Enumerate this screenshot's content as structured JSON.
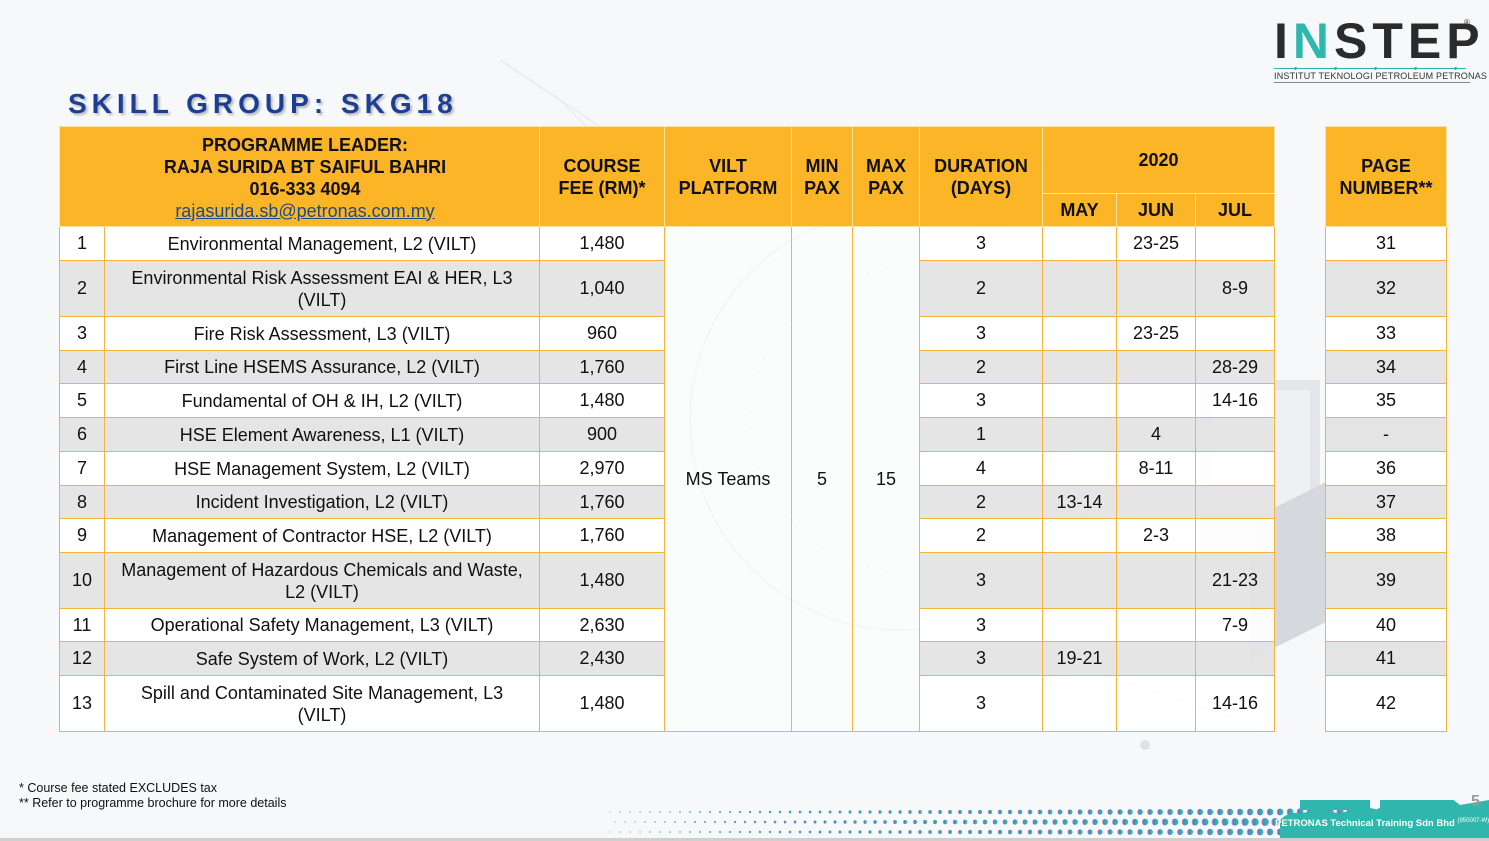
{
  "logo": {
    "word_part1": "I",
    "word_part2": "N",
    "word_part3": "STEP",
    "registered": "®",
    "subtitle": "INSTITUT TEKNOLOGI PETROLEUM PETRONAS",
    "accent_color": "#2fb6ad"
  },
  "title": "SKILL GROUP: SKG18",
  "header": {
    "leader_label": "PROGRAMME LEADER:",
    "leader_name": "RAJA SURIDA BT SAIFUL BAHRI",
    "leader_phone": "016-333 4094",
    "leader_email": "rajasurida.sb@petronas.com.my",
    "course_fee": [
      "COURSE",
      "FEE (RM)*"
    ],
    "vilt_platform": [
      "VILT",
      "PLATFORM"
    ],
    "min_pax": [
      "MIN",
      "PAX"
    ],
    "max_pax": [
      "MAX",
      "PAX"
    ],
    "duration": [
      "DURATION",
      "(DAYS)"
    ],
    "year": "2020",
    "months": [
      "MAY",
      "JUN",
      "JUL"
    ],
    "page_number": [
      "PAGE",
      "NUMBER**"
    ],
    "header_color": "#fbb526"
  },
  "shared": {
    "platform": "MS Teams",
    "min_pax": "5",
    "max_pax": "15"
  },
  "courses": [
    {
      "no": "1",
      "name": "Environmental Management, L2 (VILT)",
      "fee": "1,480",
      "days": "3",
      "may": "",
      "jun": "23-25",
      "jul": "",
      "page": "31"
    },
    {
      "no": "2",
      "name": "Environmental Risk Assessment EAI & HER, L3 (VILT)",
      "fee": "1,040",
      "days": "2",
      "may": "",
      "jun": "",
      "jul": "8-9",
      "page": "32"
    },
    {
      "no": "3",
      "name": "Fire Risk Assessment, L3 (VILT)",
      "fee": "960",
      "days": "3",
      "may": "",
      "jun": "23-25",
      "jul": "",
      "page": "33"
    },
    {
      "no": "4",
      "name": "First Line HSEMS Assurance, L2 (VILT)",
      "fee": "1,760",
      "days": "2",
      "may": "",
      "jun": "",
      "jul": "28-29",
      "page": "34"
    },
    {
      "no": "5",
      "name": "Fundamental of OH & IH, L2 (VILT)",
      "fee": "1,480",
      "days": "3",
      "may": "",
      "jun": "",
      "jul": "14-16",
      "page": "35"
    },
    {
      "no": "6",
      "name": "HSE Element Awareness, L1 (VILT)",
      "fee": "900",
      "days": "1",
      "may": "",
      "jun": "4",
      "jul": "",
      "page": "-"
    },
    {
      "no": "7",
      "name": "HSE Management System, L2 (VILT)",
      "fee": "2,970",
      "days": "4",
      "may": "",
      "jun": "8-11",
      "jul": "",
      "page": "36"
    },
    {
      "no": "8",
      "name": "Incident Investigation, L2 (VILT)",
      "fee": "1,760",
      "days": "2",
      "may": "13-14",
      "jun": "",
      "jul": "",
      "page": "37"
    },
    {
      "no": "9",
      "name": "Management of Contractor HSE, L2 (VILT)",
      "fee": "1,760",
      "days": "2",
      "may": "",
      "jun": "2-3",
      "jul": "",
      "page": "38"
    },
    {
      "no": "10",
      "name": "Management of Hazardous Chemicals and Waste, L2 (VILT)",
      "fee": "1,480",
      "days": "3",
      "may": "",
      "jun": "",
      "jul": "21-23",
      "page": "39"
    },
    {
      "no": "11",
      "name": "Operational Safety Management, L3 (VILT)",
      "fee": "2,630",
      "days": "3",
      "may": "",
      "jun": "",
      "jul": "7-9",
      "page": "40"
    },
    {
      "no": "12",
      "name": "Safe System of Work, L2 (VILT)",
      "fee": "2,430",
      "days": "3",
      "may": "19-21",
      "jun": "",
      "jul": "",
      "page": "41"
    },
    {
      "no": "13",
      "name": "Spill and Contaminated Site Management, L3 (VILT)",
      "fee": "1,480",
      "days": "3",
      "may": "",
      "jun": "",
      "jul": "14-16",
      "page": "42"
    }
  ],
  "footnotes": [
    "* Course fee stated EXCLUDES tax",
    "** Refer to programme brochure for more details"
  ],
  "footer": {
    "company": "PETRONAS Technical Training Sdn Bhd",
    "company_reg": "(950007-W)",
    "slide_number": "5"
  }
}
